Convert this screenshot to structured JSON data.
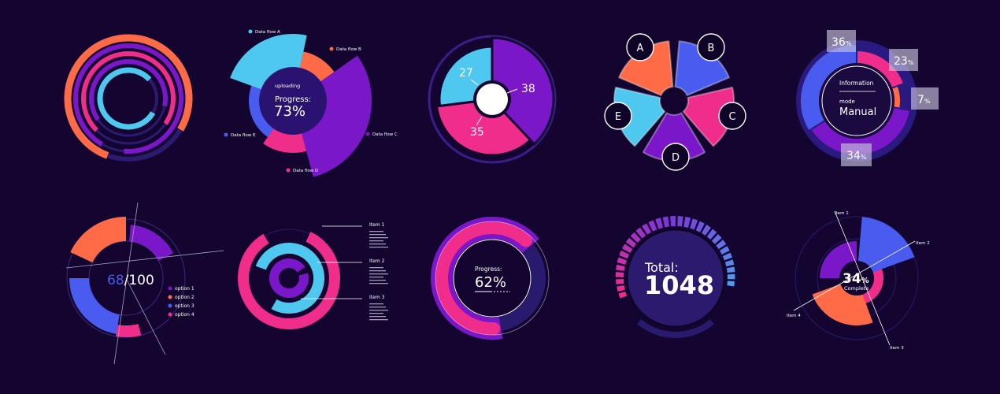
{
  "colors": {
    "bg": "#140530",
    "dark": "#1e0c4a",
    "ring": "#2c1a6e",
    "orange": "#ff6b47",
    "pink": "#f02d8a",
    "purple": "#7a17c9",
    "blue": "#4a5cf0",
    "cyan": "#4fc8ef",
    "white": "#ffffff",
    "gray": "#c8c3dc"
  },
  "chart_data": [
    {
      "id": "concentric-rings",
      "type": "radial-bar",
      "series": [
        {
          "color": "orange",
          "value": 0.78
        },
        {
          "color": "purple",
          "value": 0.93
        },
        {
          "color": "pink",
          "value": 0.72
        },
        {
          "color": "purple",
          "value": 0.63
        },
        {
          "color": "cyan",
          "value": 0.8
        }
      ]
    },
    {
      "id": "data-flow",
      "type": "rose",
      "center": {
        "small": "uploading",
        "label": "Progress:",
        "value": "73%"
      },
      "categories": [
        "Data flow A",
        "Data flow B",
        "Data flow C",
        "Data flow D",
        "Data flow E"
      ],
      "values": [
        75,
        45,
        100,
        50,
        25
      ],
      "category_colors": [
        "cyan",
        "orange",
        "purple",
        "pink",
        "blue"
      ]
    },
    {
      "id": "pie-numbers",
      "type": "pie",
      "categories": [
        "38",
        "35",
        "27"
      ],
      "values": [
        38,
        35,
        27
      ],
      "category_colors": [
        "purple",
        "pink",
        "cyan"
      ]
    },
    {
      "id": "petals",
      "type": "pie",
      "categories": [
        "A",
        "B",
        "C",
        "D",
        "E"
      ],
      "values": [
        20,
        20,
        20,
        20,
        20
      ],
      "category_colors": [
        "orange",
        "blue",
        "pink",
        "purple",
        "cyan"
      ]
    },
    {
      "id": "info-donut",
      "type": "pie",
      "center": {
        "line1": "Information",
        "line2": "mode",
        "line3": "Manual"
      },
      "labels": [
        {
          "num": "36",
          "unit": "%"
        },
        {
          "num": "23",
          "unit": "%"
        },
        {
          "num": "7",
          "unit": "%"
        },
        {
          "num": "34",
          "unit": "%"
        }
      ],
      "values": [
        36,
        23,
        7,
        34
      ],
      "category_colors": [
        "blue",
        "pink",
        "orange",
        "purple"
      ]
    },
    {
      "id": "options-score",
      "type": "radial-bar",
      "center": {
        "value": "68",
        "suffix": "/100"
      },
      "legend": [
        "option 1",
        "option 2",
        "option 3",
        "option 4"
      ],
      "category_colors": [
        "purple",
        "orange",
        "blue",
        "pink"
      ]
    },
    {
      "id": "items-rings",
      "type": "radial-bar",
      "categories": [
        "Item 1",
        "Item 2",
        "Item 3"
      ],
      "category_colors": [
        "pink",
        "cyan",
        "purple"
      ]
    },
    {
      "id": "progress-62",
      "type": "gauge",
      "label": "Progress:",
      "value": "62%",
      "fraction": 0.62
    },
    {
      "id": "total-1048",
      "type": "gauge",
      "label": "Total:",
      "value": "1048",
      "segments": 30
    },
    {
      "id": "complete-34",
      "type": "rose",
      "center": {
        "value": "34",
        "unit": "%",
        "label": "Complete"
      },
      "categories": [
        "Item 1",
        "Item 2",
        "Item 3",
        "Item 4"
      ],
      "category_colors": [
        "purple",
        "blue",
        "pink",
        "orange"
      ]
    }
  ]
}
